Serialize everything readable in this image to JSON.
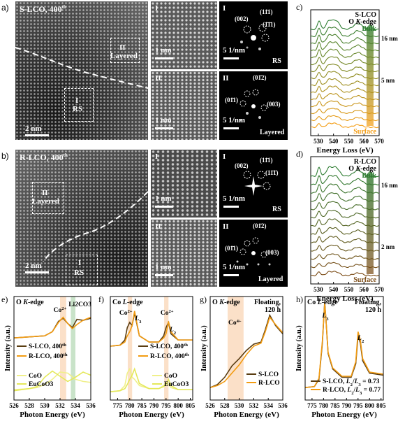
{
  "panel_a": {
    "letter": "a)",
    "title": "S-LCO, 400",
    "title_sup": "th",
    "region_layered": {
      "roman": "II",
      "word": "Layered"
    },
    "region_rs": {
      "roman": "I",
      "word": "RS"
    },
    "scale": "2 nm",
    "zoom_I": {
      "roman": "I",
      "scale": "1 nm"
    },
    "zoom_II": {
      "roman": "II",
      "scale": "1 nm"
    },
    "fft_I": {
      "roman": "I",
      "scale": "5 1/nm",
      "tag": "RS",
      "spots": [
        "(002)",
        "(11̄1)",
        "(1̄1̄1)"
      ]
    },
    "fft_II": {
      "roman": "II",
      "scale": "5 1/nm",
      "tag": "Layered",
      "spots": [
        "(01̄2)",
        "(01̄1)",
        "(003)"
      ]
    }
  },
  "panel_b": {
    "letter": "b)",
    "title": "R-LCO, 400",
    "title_sup": "th",
    "region_layered": {
      "roman": "II",
      "word": "Layered"
    },
    "region_rs": {
      "roman": "I",
      "word": "RS"
    },
    "scale": "2 nm",
    "zoom_I": {
      "roman": "I",
      "scale": "1 nm"
    },
    "zoom_II": {
      "roman": "II",
      "scale": "1 nm"
    },
    "fft_I": {
      "roman": "I",
      "scale": "5 1/nm",
      "tag": "RS",
      "spots": [
        "(002)",
        "(11̄1)",
        "(11̄1̄)"
      ]
    },
    "fft_II": {
      "roman": "II",
      "scale": "5 1/nm",
      "tag": "Layered",
      "spots": [
        "(01̄2)",
        "(01̄1)",
        "(003)"
      ]
    }
  },
  "colors": {
    "dark_brown": "#5a3d12",
    "orange": "#f39c12",
    "green": "#2e7d32",
    "yellow": "#e4e85a",
    "light_yellow": "#f0f08a",
    "orange_band": "#f8c79a",
    "green_band": "#9ccc9c"
  },
  "chart_data": [
    {
      "id": "c",
      "letter": "c)",
      "type": "line",
      "title_lines": [
        "S-LCO",
        "O K-edge"
      ],
      "top_label": "Bulk",
      "bottom_label": "Surface",
      "depth_labels": [
        "16 nm",
        "5 nm"
      ],
      "xlabel": "Energy Loss (eV)",
      "ylabel": "",
      "xlim": [
        525,
        570
      ],
      "xticks": [
        530,
        540,
        550,
        560,
        570
      ],
      "trace_count": 15
    },
    {
      "id": "d",
      "letter": "d)",
      "type": "line",
      "title_lines": [
        "R-LCO",
        "O K-edge"
      ],
      "top_label": "Bulk",
      "bottom_label": "Surface",
      "depth_labels": [
        "16 nm",
        "2 nm"
      ],
      "xlabel": "Energy Loss (eV)",
      "ylabel": "",
      "xlim": [
        525,
        570
      ],
      "xticks": [
        530,
        540,
        550,
        560,
        570
      ],
      "trace_count": 13
    },
    {
      "id": "e",
      "letter": "e)",
      "type": "line",
      "title": "O K-edge",
      "xlabel": "Photon Energy (eV)",
      "ylabel": "Intensity (a.u.)",
      "xlim": [
        526,
        536
      ],
      "xticks": [
        526,
        528,
        530,
        532,
        534,
        536
      ],
      "annotations": [
        "Co2+",
        "Li2CO3"
      ],
      "series": [
        {
          "name": "S-LCO, 400th",
          "x": [
            526,
            528,
            530,
            531,
            531.8,
            532.4,
            533,
            533.6,
            534.2,
            535,
            536
          ],
          "y": [
            0.6,
            0.61,
            0.62,
            0.66,
            0.76,
            0.79,
            0.74,
            0.7,
            0.78,
            0.77,
            0.79
          ]
        },
        {
          "name": "R-LCO, 400th",
          "x": [
            526,
            528,
            530,
            531,
            531.8,
            532.4,
            533,
            533.6,
            534.2,
            535,
            536
          ],
          "y": [
            0.6,
            0.61,
            0.62,
            0.66,
            0.75,
            0.8,
            0.74,
            0.69,
            0.73,
            0.77,
            0.8
          ]
        },
        {
          "name": "CoO",
          "x": [
            526,
            528,
            529,
            530,
            531,
            532,
            533,
            534,
            535,
            536
          ],
          "y": [
            0.1,
            0.11,
            0.12,
            0.15,
            0.2,
            0.27,
            0.26,
            0.2,
            0.18,
            0.17
          ]
        },
        {
          "name": "EuCoO3",
          "x": [
            526,
            528,
            529,
            530,
            531,
            532,
            533,
            534,
            535,
            536
          ],
          "y": [
            0.09,
            0.11,
            0.13,
            0.22,
            0.28,
            0.23,
            0.18,
            0.22,
            0.27,
            0.24
          ]
        }
      ]
    },
    {
      "id": "f",
      "letter": "f)",
      "type": "line",
      "title": "Co L-edge",
      "xlabel": "Photon Energy (eV)",
      "ylabel": "",
      "xlim": [
        772,
        806
      ],
      "xticks": [
        775,
        780,
        785,
        790,
        795,
        800,
        805
      ],
      "annotations": [
        "Co2+",
        "L3",
        "Co2+",
        "L2"
      ],
      "series": [
        {
          "name": "S-LCO, 400th",
          "x": [
            772,
            776,
            778,
            779,
            780,
            781,
            782,
            784,
            788,
            792,
            794,
            795,
            796,
            797,
            800,
            806
          ],
          "y": [
            0.52,
            0.53,
            0.58,
            0.7,
            0.75,
            0.72,
            0.84,
            0.62,
            0.56,
            0.56,
            0.62,
            0.7,
            0.75,
            0.64,
            0.58,
            0.58
          ]
        },
        {
          "name": "R-LCO, 400th",
          "x": [
            772,
            776,
            778,
            779,
            780,
            781,
            782,
            784,
            788,
            792,
            794,
            795,
            796,
            797,
            800,
            806
          ],
          "y": [
            0.52,
            0.53,
            0.56,
            0.62,
            0.66,
            0.72,
            0.86,
            0.62,
            0.56,
            0.56,
            0.6,
            0.64,
            0.76,
            0.66,
            0.58,
            0.58
          ]
        },
        {
          "name": "CoO",
          "x": [
            772,
            776,
            778,
            779,
            780,
            781,
            782,
            784,
            788,
            792,
            794,
            795,
            796,
            797,
            800,
            806
          ],
          "y": [
            0.08,
            0.09,
            0.14,
            0.26,
            0.3,
            0.22,
            0.2,
            0.14,
            0.11,
            0.11,
            0.14,
            0.17,
            0.15,
            0.12,
            0.1,
            0.1
          ]
        },
        {
          "name": "EuCoO3",
          "x": [
            772,
            776,
            778,
            779,
            780,
            781,
            782,
            784,
            788,
            792,
            794,
            795,
            796,
            797,
            800,
            806
          ],
          "y": [
            0.08,
            0.09,
            0.11,
            0.15,
            0.2,
            0.24,
            0.3,
            0.16,
            0.11,
            0.11,
            0.13,
            0.15,
            0.2,
            0.14,
            0.1,
            0.1
          ]
        }
      ]
    },
    {
      "id": "g",
      "letter": "g)",
      "type": "line",
      "title": "O K-edge",
      "subtitle": "Floating, 120 h",
      "xlabel": "Photon Energy (eV)",
      "ylabel": "Intensity (a.u.)",
      "xlim": [
        526,
        536
      ],
      "xticks": [
        526,
        528,
        530,
        532,
        534,
        536
      ],
      "annotations": [
        "Co4+"
      ],
      "series": [
        {
          "name": "S-LCO",
          "x": [
            526,
            527,
            528,
            529,
            530,
            531,
            532,
            533,
            533.6,
            534.2,
            535,
            536
          ],
          "y": [
            0.12,
            0.15,
            0.22,
            0.33,
            0.4,
            0.48,
            0.54,
            0.56,
            0.68,
            0.82,
            0.72,
            0.64
          ]
        },
        {
          "name": "R-LCO",
          "x": [
            526,
            527,
            528,
            529,
            530,
            531,
            532,
            533,
            533.6,
            534.2,
            535,
            536
          ],
          "y": [
            0.12,
            0.14,
            0.18,
            0.26,
            0.34,
            0.44,
            0.52,
            0.55,
            0.66,
            0.8,
            0.73,
            0.65
          ]
        }
      ]
    },
    {
      "id": "h",
      "letter": "h)",
      "type": "line",
      "title": "Co L-edge",
      "subtitle": "Floating, 120 h",
      "xlabel": "Photon Energy (eV)",
      "ylabel": "Intensity (a.u.)",
      "xlim": [
        772,
        806
      ],
      "xticks": [
        775,
        780,
        785,
        790,
        795,
        800,
        805
      ],
      "annotations": [
        "L3",
        "L2"
      ],
      "series": [
        {
          "name": "S-LCO, L2/L3 = 0.73",
          "x": [
            772,
            776,
            778,
            779.5,
            780.5,
            781,
            782,
            784,
            788,
            792,
            794,
            795,
            796,
            797,
            800,
            806
          ],
          "y": [
            0.12,
            0.13,
            0.2,
            0.55,
            0.95,
            0.8,
            0.45,
            0.3,
            0.22,
            0.22,
            0.35,
            0.62,
            0.55,
            0.38,
            0.26,
            0.24
          ]
        },
        {
          "name": "R-LCO, L2/L3 = 0.77",
          "x": [
            772,
            776,
            778,
            779.5,
            780.5,
            781,
            782,
            784,
            788,
            792,
            794,
            795,
            796,
            797,
            800,
            806
          ],
          "y": [
            0.12,
            0.13,
            0.21,
            0.57,
            0.93,
            0.8,
            0.46,
            0.31,
            0.23,
            0.23,
            0.37,
            0.66,
            0.58,
            0.4,
            0.27,
            0.25
          ]
        }
      ]
    }
  ]
}
